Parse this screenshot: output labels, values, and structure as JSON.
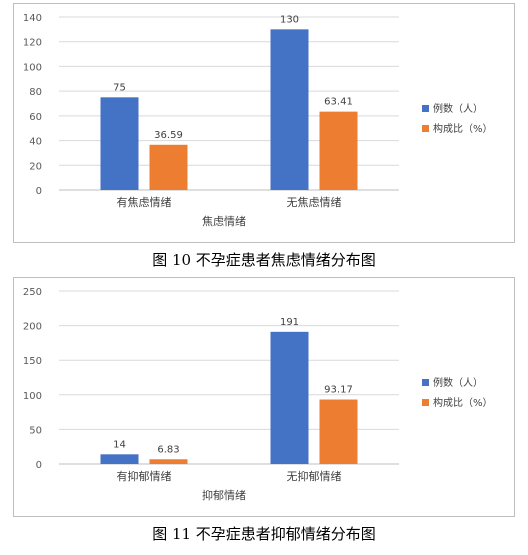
{
  "chart_data": [
    {
      "type": "bar",
      "title": "",
      "xlabel": "焦虑情绪",
      "ylabel": "",
      "categories": [
        "有焦虑情绪",
        "无焦虑情绪"
      ],
      "series": [
        {
          "name": "例数（人）",
          "values": [
            75,
            130
          ],
          "color": "#4472C4"
        },
        {
          "name": "构成比（%）",
          "values": [
            36.59,
            63.41
          ],
          "color": "#ED7D31"
        }
      ],
      "value_labels": [
        [
          "75",
          "130"
        ],
        [
          "36.59",
          "63.41"
        ]
      ],
      "ylim": [
        0,
        140
      ],
      "yticks": [
        0,
        20,
        40,
        60,
        80,
        100,
        120,
        140
      ],
      "grid": true,
      "legend_position": "right"
    },
    {
      "type": "bar",
      "title": "",
      "xlabel": "抑郁情绪",
      "ylabel": "",
      "categories": [
        "有抑郁情绪",
        "无抑郁情绪"
      ],
      "series": [
        {
          "name": "例数（人）",
          "values": [
            14,
            191
          ],
          "color": "#4472C4"
        },
        {
          "name": "构成比（%）",
          "values": [
            6.83,
            93.17
          ],
          "color": "#ED7D31"
        }
      ],
      "value_labels": [
        [
          "14",
          "191"
        ],
        [
          "6.83",
          "93.17"
        ]
      ],
      "ylim": [
        0,
        250
      ],
      "yticks": [
        0,
        50,
        100,
        150,
        200,
        250
      ],
      "grid": true,
      "legend_position": "right"
    }
  ],
  "captions": {
    "figure1": "图 10  不孕症患者焦虑情绪分布图",
    "figure2": "图 11  不孕症患者抑郁情绪分布图"
  }
}
